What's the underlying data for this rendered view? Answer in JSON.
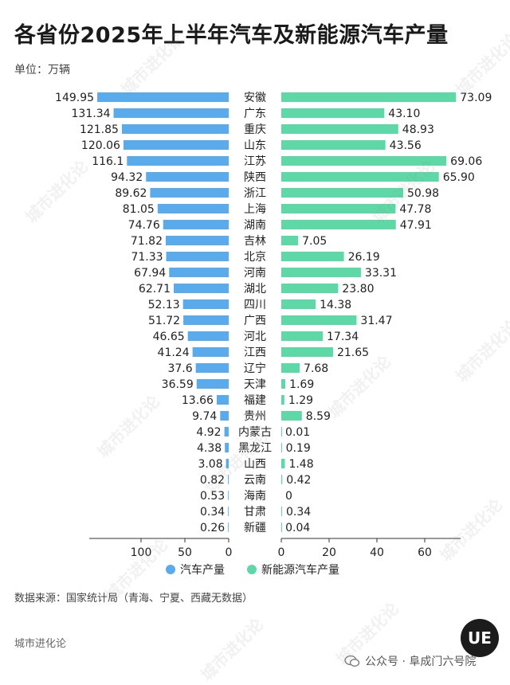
{
  "header": {
    "title": "各省份2025年上半年汽车及新能源汽车产量",
    "unit": "单位：万辆"
  },
  "chart_data": {
    "type": "bar",
    "categories": [
      "安徽",
      "广东",
      "重庆",
      "山东",
      "江苏",
      "陕西",
      "浙江",
      "上海",
      "湖南",
      "吉林",
      "北京",
      "河南",
      "湖北",
      "四川",
      "广西",
      "河北",
      "江西",
      "辽宁",
      "天津",
      "福建",
      "贵州",
      "内蒙古",
      "黑龙江",
      "山西",
      "云南",
      "海南",
      "甘肃",
      "新疆"
    ],
    "series": [
      {
        "name": "汽车产量",
        "color": "#5aabeb",
        "values": [
          149.95,
          131.34,
          121.85,
          120.06,
          116.1,
          94.32,
          89.62,
          81.05,
          74.76,
          71.82,
          71.33,
          67.94,
          62.71,
          52.13,
          51.72,
          46.65,
          41.24,
          37.6,
          36.59,
          13.66,
          9.74,
          4.92,
          4.38,
          3.08,
          0.82,
          0.53,
          0.34,
          0.26
        ],
        "labels": [
          "149.95",
          "131.34",
          "121.85",
          "120.06",
          "116.1",
          "94.32",
          "89.62",
          "81.05",
          "74.76",
          "71.82",
          "71.33",
          "67.94",
          "62.71",
          "52.13",
          "51.72",
          "46.65",
          "41.24",
          "37.6",
          "36.59",
          "13.66",
          "9.74",
          "4.92",
          "4.38",
          "3.08",
          "0.82",
          "0.53",
          "0.34",
          "0.26"
        ]
      },
      {
        "name": "新能源汽车产量",
        "color": "#5dd8a6",
        "values": [
          73.09,
          43.1,
          48.93,
          43.56,
          69.06,
          65.9,
          50.98,
          47.78,
          47.91,
          7.05,
          26.19,
          33.31,
          23.8,
          14.38,
          31.47,
          17.34,
          21.65,
          7.68,
          1.69,
          1.29,
          8.59,
          0.01,
          0.19,
          1.48,
          0.42,
          0,
          0.34,
          0.04
        ],
        "labels": [
          "73.09",
          "43.10",
          "48.93",
          "43.56",
          "69.06",
          "65.90",
          "50.98",
          "47.78",
          "47.91",
          "7.05",
          "26.19",
          "33.31",
          "23.80",
          "14.38",
          "31.47",
          "17.34",
          "21.65",
          "7.68",
          "1.69",
          "1.29",
          "8.59",
          "0.01",
          "0.19",
          "1.48",
          "0.42",
          "0",
          "0.34",
          "0.04"
        ]
      }
    ],
    "left_axis": {
      "ticks": [
        "100",
        "50",
        "0"
      ],
      "values": [
        100,
        50,
        0
      ],
      "lim": [
        0,
        150
      ]
    },
    "right_axis": {
      "ticks": [
        "0",
        "20",
        "40",
        "60"
      ],
      "values": [
        0,
        20,
        40,
        60
      ],
      "lim": [
        0,
        75
      ]
    },
    "legend": {
      "placement": "bottom-center",
      "items": [
        "汽车产量",
        "新能源汽车产量"
      ]
    }
  },
  "footer": {
    "source": "数据来源：国家统计局（青海、宁夏、西藏无数据）",
    "brand": "城市进化论",
    "account": "公众号 · 阜成门六号院",
    "badge": "UE"
  },
  "watermark": "城市进化论"
}
